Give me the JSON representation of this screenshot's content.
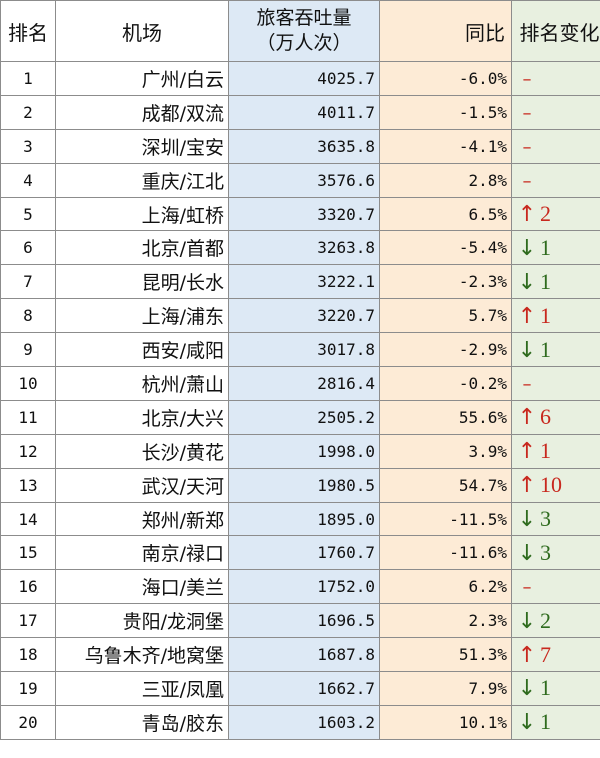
{
  "header": {
    "rank": "排名",
    "airport": "机场",
    "passengers_line1": "旅客吞吐量",
    "passengers_line2": "（万人次）",
    "yoy": "同比",
    "rank_change": "排名变化"
  },
  "colors": {
    "up": "#c8281e",
    "down": "#2e6b1e",
    "same": "#c8281e",
    "passengers_bg": "#dde9f5",
    "yoy_bg": "#fdebd6",
    "change_bg": "#e8f0e0"
  },
  "rows": [
    {
      "rank": "1",
      "airport": "广州/白云",
      "passengers": "4025.7",
      "yoy": "-6.0%",
      "dir": "same",
      "arrow": "–",
      "change": ""
    },
    {
      "rank": "2",
      "airport": "成都/双流",
      "passengers": "4011.7",
      "yoy": "-1.5%",
      "dir": "same",
      "arrow": "–",
      "change": ""
    },
    {
      "rank": "3",
      "airport": "深圳/宝安",
      "passengers": "3635.8",
      "yoy": "-4.1%",
      "dir": "same",
      "arrow": "–",
      "change": ""
    },
    {
      "rank": "4",
      "airport": "重庆/江北",
      "passengers": "3576.6",
      "yoy": "2.8%",
      "dir": "same",
      "arrow": "–",
      "change": ""
    },
    {
      "rank": "5",
      "airport": "上海/虹桥",
      "passengers": "3320.7",
      "yoy": "6.5%",
      "dir": "up",
      "arrow": "↑",
      "change": "2"
    },
    {
      "rank": "6",
      "airport": "北京/首都",
      "passengers": "3263.8",
      "yoy": "-5.4%",
      "dir": "down",
      "arrow": "↓",
      "change": "1"
    },
    {
      "rank": "7",
      "airport": "昆明/长水",
      "passengers": "3222.1",
      "yoy": "-2.3%",
      "dir": "down",
      "arrow": "↓",
      "change": "1"
    },
    {
      "rank": "8",
      "airport": "上海/浦东",
      "passengers": "3220.7",
      "yoy": "5.7%",
      "dir": "up",
      "arrow": "↑",
      "change": "1"
    },
    {
      "rank": "9",
      "airport": "西安/咸阳",
      "passengers": "3017.8",
      "yoy": "-2.9%",
      "dir": "down",
      "arrow": "↓",
      "change": "1"
    },
    {
      "rank": "10",
      "airport": "杭州/萧山",
      "passengers": "2816.4",
      "yoy": "-0.2%",
      "dir": "same",
      "arrow": "–",
      "change": ""
    },
    {
      "rank": "11",
      "airport": "北京/大兴",
      "passengers": "2505.2",
      "yoy": "55.6%",
      "dir": "up",
      "arrow": "↑",
      "change": "6"
    },
    {
      "rank": "12",
      "airport": "长沙/黄花",
      "passengers": "1998.0",
      "yoy": "3.9%",
      "dir": "up",
      "arrow": "↑",
      "change": "1"
    },
    {
      "rank": "13",
      "airport": "武汉/天河",
      "passengers": "1980.5",
      "yoy": "54.7%",
      "dir": "up",
      "arrow": "↑",
      "change": "10"
    },
    {
      "rank": "14",
      "airport": "郑州/新郑",
      "passengers": "1895.0",
      "yoy": "-11.5%",
      "dir": "down",
      "arrow": "↓",
      "change": "3"
    },
    {
      "rank": "15",
      "airport": "南京/禄口",
      "passengers": "1760.7",
      "yoy": "-11.6%",
      "dir": "down",
      "arrow": "↓",
      "change": "3"
    },
    {
      "rank": "16",
      "airport": "海口/美兰",
      "passengers": "1752.0",
      "yoy": "6.2%",
      "dir": "same",
      "arrow": "–",
      "change": ""
    },
    {
      "rank": "17",
      "airport": "贵阳/龙洞堡",
      "passengers": "1696.5",
      "yoy": "2.3%",
      "dir": "down",
      "arrow": "↓",
      "change": "2"
    },
    {
      "rank": "18",
      "airport": "乌鲁木齐/地窝堡",
      "passengers": "1687.8",
      "yoy": "51.3%",
      "dir": "up",
      "arrow": "↑",
      "change": "7"
    },
    {
      "rank": "19",
      "airport": "三亚/凤凰",
      "passengers": "1662.7",
      "yoy": "7.9%",
      "dir": "down",
      "arrow": "↓",
      "change": "1"
    },
    {
      "rank": "20",
      "airport": "青岛/胶东",
      "passengers": "1603.2",
      "yoy": "10.1%",
      "dir": "down",
      "arrow": "↓",
      "change": "1"
    }
  ]
}
